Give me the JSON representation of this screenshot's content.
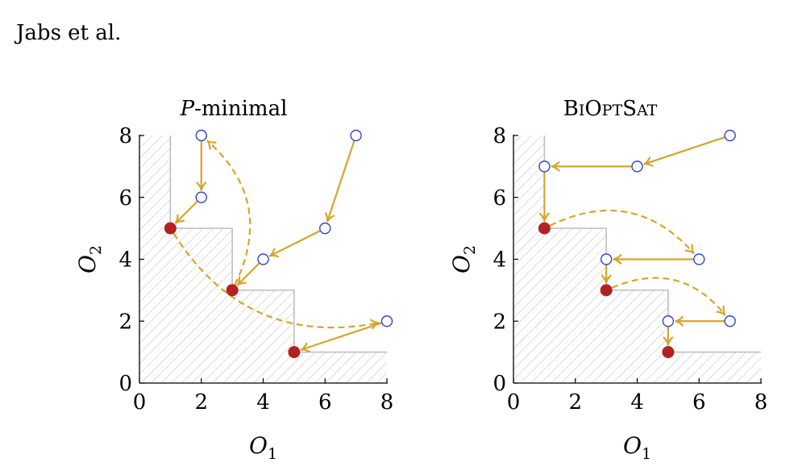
{
  "header": {
    "running_head": "Jabs et al."
  },
  "colors": {
    "solution": "#b22222",
    "candidate": "#3344cc",
    "arrow": "#d4a52a",
    "hatch": "#c4c4c4",
    "staircase": "#bdbdbd"
  },
  "chart_data": [
    {
      "type": "scatter",
      "title": "P-minimal",
      "xlabel": "O1",
      "ylabel": "O2",
      "xlim": [
        0,
        8
      ],
      "ylim": [
        0,
        8
      ],
      "xticks": [
        0,
        2,
        4,
        6,
        8
      ],
      "yticks": [
        0,
        2,
        4,
        6,
        8
      ],
      "pareto_points": [
        [
          1,
          5
        ],
        [
          3,
          3
        ],
        [
          5,
          1
        ]
      ],
      "candidate_points": [
        [
          2,
          8
        ],
        [
          2,
          6
        ],
        [
          7,
          8
        ],
        [
          6,
          5
        ],
        [
          4,
          4
        ],
        [
          8,
          2
        ]
      ],
      "solid_arrows": [
        [
          [
            2,
            8
          ],
          [
            2,
            6
          ]
        ],
        [
          [
            2,
            6
          ],
          [
            1,
            5
          ]
        ],
        [
          [
            7,
            8
          ],
          [
            6,
            5
          ]
        ],
        [
          [
            6,
            5
          ],
          [
            4,
            4
          ]
        ],
        [
          [
            4,
            4
          ],
          [
            3,
            3
          ]
        ],
        [
          [
            8,
            2
          ],
          [
            5,
            1
          ]
        ]
      ],
      "dashed_arrows": [
        [
          [
            3,
            3
          ],
          [
            2,
            8
          ]
        ],
        [
          [
            1,
            5
          ],
          [
            8,
            2
          ]
        ]
      ]
    },
    {
      "type": "scatter",
      "title": "BiOptSat",
      "xlabel": "O1",
      "ylabel": "O2",
      "xlim": [
        0,
        8
      ],
      "ylim": [
        0,
        8
      ],
      "xticks": [
        0,
        2,
        4,
        6,
        8
      ],
      "yticks": [
        0,
        2,
        4,
        6,
        8
      ],
      "pareto_points": [
        [
          1,
          5
        ],
        [
          3,
          3
        ],
        [
          5,
          1
        ]
      ],
      "candidate_points": [
        [
          7,
          8
        ],
        [
          4,
          7
        ],
        [
          1,
          7
        ],
        [
          6,
          4
        ],
        [
          3,
          4
        ],
        [
          7,
          2
        ],
        [
          5,
          2
        ]
      ],
      "solid_arrows": [
        [
          [
            7,
            8
          ],
          [
            4,
            7
          ]
        ],
        [
          [
            4,
            7
          ],
          [
            1,
            7
          ]
        ],
        [
          [
            1,
            7
          ],
          [
            1,
            5
          ]
        ],
        [
          [
            6,
            4
          ],
          [
            3,
            4
          ]
        ],
        [
          [
            3,
            4
          ],
          [
            3,
            3
          ]
        ],
        [
          [
            7,
            2
          ],
          [
            5,
            2
          ]
        ],
        [
          [
            5,
            2
          ],
          [
            5,
            1
          ]
        ]
      ],
      "dashed_arrows": [
        [
          [
            1,
            5
          ],
          [
            6,
            4
          ]
        ],
        [
          [
            3,
            3
          ],
          [
            7,
            2
          ]
        ]
      ]
    }
  ]
}
